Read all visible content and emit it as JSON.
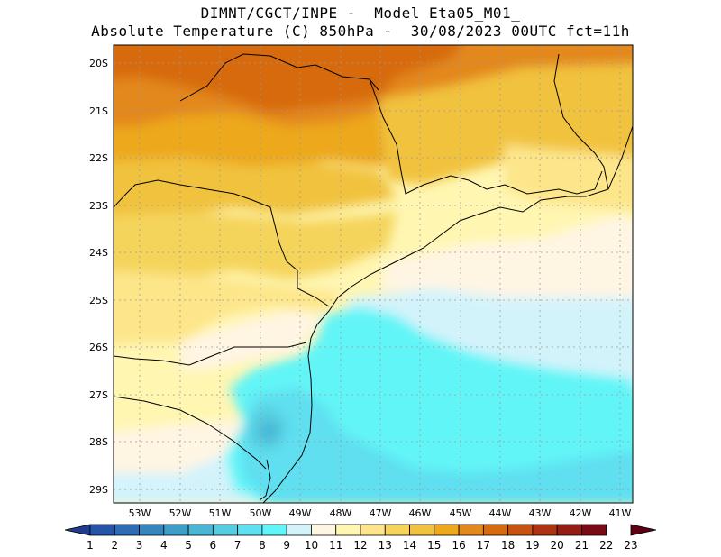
{
  "title": {
    "line1": "DIMNT/CGCT/INPE -  Model Eta05_M01_",
    "line2": "Absolute Temperature (C) 850hPa -  30/08/2023 00UTC fct=11h"
  },
  "map": {
    "lat_labels": [
      "20S",
      "21S",
      "22S",
      "23S",
      "24S",
      "25S",
      "26S",
      "27S",
      "28S",
      "29S"
    ],
    "lon_labels": [
      "53W",
      "52W",
      "51W",
      "50W",
      "49W",
      "48W",
      "47W",
      "46W",
      "45W",
      "44W",
      "43W",
      "42W",
      "41W"
    ],
    "lat_range": [
      -29.4,
      -19.8
    ],
    "lon_range": [
      -53.5,
      -40.7
    ]
  },
  "colorbar": {
    "labels": [
      "1",
      "2",
      "3",
      "4",
      "5",
      "6",
      "7",
      "8",
      "9",
      "10",
      "11",
      "12",
      "13",
      "14",
      "15",
      "16",
      "17",
      "18",
      "19",
      "20",
      "21",
      "22",
      "23"
    ],
    "colors": [
      "#1f3c8f",
      "#2654a8",
      "#2e6db5",
      "#3585bf",
      "#3d9ec8",
      "#48b6d4",
      "#55cce0",
      "#5fdff0",
      "#62f5f7",
      "#d3f3fb",
      "#fff5e3",
      "#fff6b2",
      "#fde68a",
      "#f5d45c",
      "#f1c23e",
      "#eda81c",
      "#e3881a",
      "#d76a0e",
      "#c8520f",
      "#ad3410",
      "#951e14",
      "#7a0b16",
      "#5e0012"
    ]
  }
}
